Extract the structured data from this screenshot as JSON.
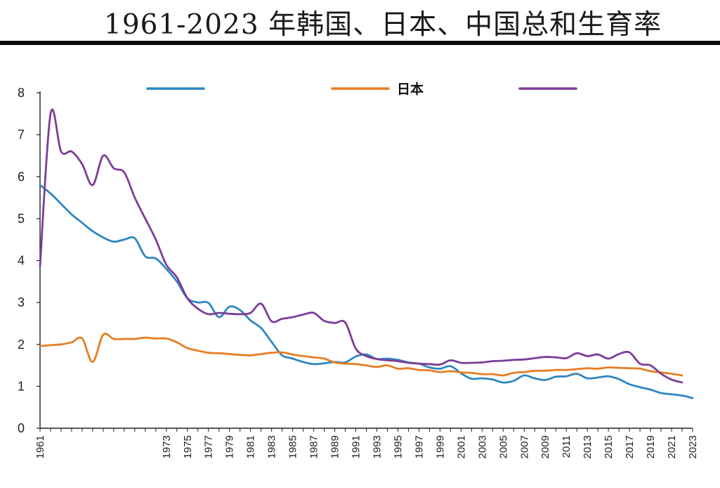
{
  "header": {
    "title": "1961-2023 年韩国、日本、中国总和生育率"
  },
  "chart_data": {
    "type": "line",
    "title": "1961-2023 年韩国、日本、中国总和生育率",
    "xlabel": "",
    "ylabel": "",
    "xlim": [
      1961,
      2023
    ],
    "ylim": [
      0,
      8
    ],
    "yticks": [
      0,
      1,
      2,
      3,
      4,
      5,
      6,
      7,
      8
    ],
    "xticks": [
      "1961",
      "1973",
      "1975",
      "1977",
      "1979",
      "1981",
      "1983",
      "1985",
      "1987",
      "1989",
      "1991",
      "1993",
      "1995",
      "1997",
      "1999",
      "2001",
      "2003",
      "2005",
      "2007",
      "2009",
      "2011",
      "2013",
      "2015",
      "2017",
      "2019",
      "2021",
      "2023"
    ],
    "grid": false,
    "legend_position": "top",
    "series": [
      {
        "name": "",
        "color": "#2E86C1",
        "x": [
          1961,
          1962,
          1963,
          1964,
          1965,
          1966,
          1967,
          1968,
          1969,
          1970,
          1971,
          1972,
          1973,
          1974,
          1975,
          1976,
          1977,
          1978,
          1979,
          1980,
          1981,
          1982,
          1983,
          1984,
          1985,
          1986,
          1987,
          1988,
          1989,
          1990,
          1991,
          1992,
          1993,
          1994,
          1995,
          1996,
          1997,
          1998,
          1999,
          2000,
          2001,
          2002,
          2003,
          2004,
          2005,
          2006,
          2007,
          2008,
          2009,
          2010,
          2011,
          2012,
          2013,
          2014,
          2015,
          2016,
          2017,
          2018,
          2019,
          2020,
          2021,
          2022,
          2023
        ],
        "values": [
          5.8,
          5.6,
          5.35,
          5.1,
          4.9,
          4.7,
          4.55,
          4.45,
          4.5,
          4.53,
          4.1,
          4.05,
          3.8,
          3.5,
          3.1,
          3.0,
          2.99,
          2.65,
          2.9,
          2.82,
          2.57,
          2.39,
          2.06,
          1.74,
          1.66,
          1.58,
          1.53,
          1.55,
          1.58,
          1.57,
          1.71,
          1.76,
          1.65,
          1.66,
          1.63,
          1.57,
          1.54,
          1.45,
          1.42,
          1.48,
          1.31,
          1.18,
          1.19,
          1.16,
          1.09,
          1.13,
          1.26,
          1.19,
          1.15,
          1.23,
          1.24,
          1.3,
          1.19,
          1.21,
          1.24,
          1.17,
          1.05,
          0.98,
          0.92,
          0.84,
          0.81,
          0.78,
          0.72
        ]
      },
      {
        "name": "日本",
        "color": "#E67E22",
        "x": [
          1961,
          1962,
          1963,
          1964,
          1965,
          1966,
          1967,
          1968,
          1969,
          1970,
          1971,
          1972,
          1973,
          1974,
          1975,
          1976,
          1977,
          1978,
          1979,
          1980,
          1981,
          1982,
          1983,
          1984,
          1985,
          1986,
          1987,
          1988,
          1989,
          1990,
          1991,
          1992,
          1993,
          1994,
          1995,
          1996,
          1997,
          1998,
          1999,
          2000,
          2001,
          2002,
          2003,
          2004,
          2005,
          2006,
          2007,
          2008,
          2009,
          2010,
          2011,
          2012,
          2013,
          2014,
          2015,
          2016,
          2017,
          2018,
          2019,
          2020,
          2021,
          2022
        ],
        "values": [
          1.96,
          1.98,
          2.0,
          2.05,
          2.14,
          1.58,
          2.23,
          2.13,
          2.13,
          2.13,
          2.16,
          2.14,
          2.14,
          2.05,
          1.91,
          1.85,
          1.8,
          1.79,
          1.77,
          1.75,
          1.74,
          1.77,
          1.8,
          1.81,
          1.76,
          1.72,
          1.69,
          1.66,
          1.57,
          1.54,
          1.53,
          1.5,
          1.46,
          1.5,
          1.42,
          1.43,
          1.39,
          1.38,
          1.34,
          1.36,
          1.33,
          1.32,
          1.29,
          1.29,
          1.26,
          1.32,
          1.34,
          1.37,
          1.37,
          1.39,
          1.39,
          1.41,
          1.43,
          1.42,
          1.45,
          1.44,
          1.43,
          1.42,
          1.36,
          1.33,
          1.3,
          1.26
        ]
      },
      {
        "name": "",
        "color": "#7D3C98",
        "x": [
          1961,
          1962,
          1963,
          1964,
          1965,
          1966,
          1967,
          1968,
          1969,
          1970,
          1971,
          1972,
          1973,
          1974,
          1975,
          1976,
          1977,
          1978,
          1979,
          1980,
          1981,
          1982,
          1983,
          1984,
          1985,
          1986,
          1987,
          1988,
          1989,
          1990,
          1991,
          1992,
          1993,
          1994,
          1995,
          1996,
          1997,
          1998,
          1999,
          2000,
          2001,
          2002,
          2003,
          2004,
          2005,
          2006,
          2007,
          2008,
          2009,
          2010,
          2011,
          2012,
          2013,
          2014,
          2015,
          2016,
          2017,
          2018,
          2019,
          2020,
          2021,
          2022
        ],
        "values": [
          3.86,
          7.5,
          6.6,
          6.6,
          6.3,
          5.8,
          6.5,
          6.2,
          6.1,
          5.5,
          5.0,
          4.5,
          3.9,
          3.6,
          3.1,
          2.85,
          2.72,
          2.75,
          2.73,
          2.72,
          2.75,
          2.97,
          2.55,
          2.61,
          2.65,
          2.71,
          2.75,
          2.56,
          2.51,
          2.52,
          1.9,
          1.72,
          1.65,
          1.62,
          1.6,
          1.56,
          1.54,
          1.53,
          1.52,
          1.62,
          1.56,
          1.56,
          1.57,
          1.6,
          1.61,
          1.63,
          1.64,
          1.67,
          1.7,
          1.69,
          1.67,
          1.79,
          1.72,
          1.76,
          1.66,
          1.77,
          1.81,
          1.54,
          1.5,
          1.3,
          1.16,
          1.09
        ]
      }
    ]
  }
}
